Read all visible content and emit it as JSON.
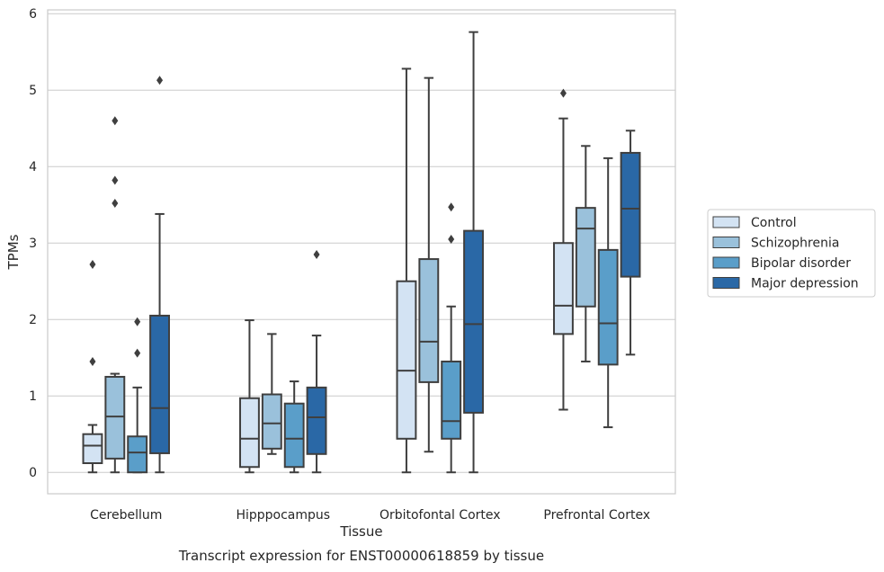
{
  "chart_data": {
    "type": "box",
    "title": "Transcript expression for ENST00000618859 by tissue",
    "xlabel": "Tissue",
    "ylabel": "TPMs",
    "ylim": [
      -0.28,
      6.05
    ],
    "yticks": [
      0,
      1,
      2,
      3,
      4,
      5,
      6
    ],
    "grid": "horizontal",
    "legend_position": "right",
    "categories": [
      "Cerebellum",
      "Hipppocampus",
      "Orbitofontal Cortex",
      "Prefrontal Cortex"
    ],
    "series": [
      {
        "name": "Control",
        "color": "#d3e3f3",
        "boxes": [
          {
            "whislo": 0.0,
            "q1": 0.12,
            "med": 0.35,
            "q3": 0.5,
            "whishi": 0.62,
            "fliers": [
              1.45,
              2.72
            ]
          },
          {
            "whislo": 0.0,
            "q1": 0.07,
            "med": 0.44,
            "q3": 0.97,
            "whishi": 1.99,
            "fliers": []
          },
          {
            "whislo": 0.0,
            "q1": 0.44,
            "med": 1.33,
            "q3": 2.5,
            "whishi": 5.28,
            "fliers": []
          },
          {
            "whislo": 0.82,
            "q1": 1.81,
            "med": 2.18,
            "q3": 3.0,
            "whishi": 4.63,
            "fliers": [
              4.96
            ]
          }
        ]
      },
      {
        "name": "Schizophrenia",
        "color": "#9ac1db",
        "boxes": [
          {
            "whislo": 0.0,
            "q1": 0.18,
            "med": 0.73,
            "q3": 1.25,
            "whishi": 1.29,
            "fliers": [
              3.52,
              3.82,
              4.6
            ]
          },
          {
            "whislo": 0.24,
            "q1": 0.31,
            "med": 0.64,
            "q3": 1.02,
            "whishi": 1.81,
            "fliers": []
          },
          {
            "whislo": 0.27,
            "q1": 1.18,
            "med": 1.71,
            "q3": 2.79,
            "whishi": 5.16,
            "fliers": []
          },
          {
            "whislo": 1.45,
            "q1": 2.17,
            "med": 3.19,
            "q3": 3.46,
            "whishi": 4.27,
            "fliers": []
          }
        ]
      },
      {
        "name": "Bipolar disorder",
        "color": "#5a9ec9",
        "boxes": [
          {
            "whislo": 0.0,
            "q1": 0.0,
            "med": 0.26,
            "q3": 0.47,
            "whishi": 1.11,
            "fliers": [
              1.56,
              1.97
            ]
          },
          {
            "whislo": 0.0,
            "q1": 0.07,
            "med": 0.44,
            "q3": 0.9,
            "whishi": 1.19,
            "fliers": []
          },
          {
            "whislo": 0.0,
            "q1": 0.44,
            "med": 0.67,
            "q3": 1.45,
            "whishi": 2.17,
            "fliers": [
              3.05,
              3.47
            ]
          },
          {
            "whislo": 0.59,
            "q1": 1.41,
            "med": 1.95,
            "q3": 2.91,
            "whishi": 4.11,
            "fliers": []
          }
        ]
      },
      {
        "name": "Major depression",
        "color": "#2a68a6",
        "boxes": [
          {
            "whislo": 0.0,
            "q1": 0.25,
            "med": 0.84,
            "q3": 2.05,
            "whishi": 3.38,
            "fliers": [
              5.13
            ]
          },
          {
            "whislo": 0.0,
            "q1": 0.24,
            "med": 0.72,
            "q3": 1.11,
            "whishi": 1.79,
            "fliers": [
              2.85
            ]
          },
          {
            "whislo": 0.0,
            "q1": 0.78,
            "med": 1.94,
            "q3": 3.16,
            "whishi": 5.76,
            "fliers": []
          },
          {
            "whislo": 1.54,
            "q1": 2.56,
            "med": 3.45,
            "q3": 4.18,
            "whishi": 4.47,
            "fliers": []
          }
        ]
      }
    ]
  }
}
